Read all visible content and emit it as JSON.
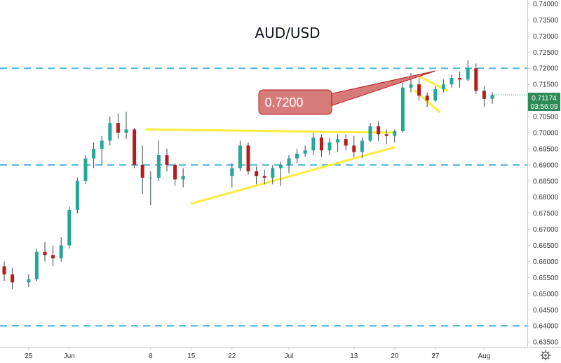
{
  "chart_data": {
    "type": "candlestick",
    "title": "AUD/USD",
    "y_axis": {
      "ticks": [
        "0.74000",
        "0.73500",
        "0.73000",
        "0.72500",
        "0.72000",
        "0.71500",
        "0.71000",
        "0.70500",
        "0.70000",
        "0.69500",
        "0.69000",
        "0.68500",
        "0.68000",
        "0.67500",
        "0.67000",
        "0.66500",
        "0.66000",
        "0.65500",
        "0.65000",
        "0.64500",
        "0.64000",
        "0.63500"
      ],
      "range": [
        0.6335,
        0.7412
      ],
      "position": "right"
    },
    "x_axis": {
      "ticks": [
        {
          "label": "25",
          "index": 3
        },
        {
          "label": "Jun",
          "index": 8
        },
        {
          "label": "8",
          "index": 18
        },
        {
          "label": "15",
          "index": 23
        },
        {
          "label": "22",
          "index": 28
        },
        {
          "label": "Jul",
          "index": 35
        },
        {
          "label": "13",
          "index": 43
        },
        {
          "label": "20",
          "index": 48
        },
        {
          "label": "27",
          "index": 53
        },
        {
          "label": "Aug",
          "index": 59
        }
      ]
    },
    "grid": false,
    "colors": {
      "up": "#26a69a",
      "down": "#b71c1c",
      "wick": "#37474f",
      "level": "#4fb8e0",
      "trend": "#ffeb3b",
      "callout_fill": "#d77a7a",
      "callout_border": "#b71c1c",
      "price_tag": "#2e8b57"
    },
    "candles": [
      {
        "d": "May 21",
        "o": 0.6585,
        "h": 0.66,
        "l": 0.654,
        "c": 0.656
      },
      {
        "d": "May 22",
        "o": 0.656,
        "h": 0.658,
        "l": 0.6515,
        "c": 0.6535
      },
      {
        "d": "May 25",
        "o": 0.6535,
        "h": 0.656,
        "l": 0.652,
        "c": 0.6545
      },
      {
        "d": "May 26",
        "o": 0.6545,
        "h": 0.664,
        "l": 0.654,
        "c": 0.663
      },
      {
        "d": "May 27",
        "o": 0.663,
        "h": 0.666,
        "l": 0.66,
        "c": 0.662
      },
      {
        "d": "May 28",
        "o": 0.662,
        "h": 0.665,
        "l": 0.6585,
        "c": 0.661
      },
      {
        "d": "May 29",
        "o": 0.661,
        "h": 0.6675,
        "l": 0.66,
        "c": 0.665
      },
      {
        "d": "Jun 1",
        "o": 0.665,
        "h": 0.677,
        "l": 0.664,
        "c": 0.676
      },
      {
        "d": "Jun 2",
        "o": 0.676,
        "h": 0.686,
        "l": 0.675,
        "c": 0.685
      },
      {
        "d": "Jun 3",
        "o": 0.685,
        "h": 0.693,
        "l": 0.684,
        "c": 0.692
      },
      {
        "d": "Jun 4",
        "o": 0.692,
        "h": 0.697,
        "l": 0.689,
        "c": 0.695
      },
      {
        "d": "Jun 5",
        "o": 0.695,
        "h": 0.699,
        "l": 0.69,
        "c": 0.6975
      },
      {
        "d": "Jun 8",
        "o": 0.6975,
        "h": 0.705,
        "l": 0.696,
        "c": 0.703
      },
      {
        "d": "Jun 9",
        "o": 0.703,
        "h": 0.706,
        "l": 0.698,
        "c": 0.7
      },
      {
        "d": "Jun 10",
        "o": 0.7,
        "h": 0.7065,
        "l": 0.698,
        "c": 0.701
      },
      {
        "d": "Jun 11",
        "o": 0.701,
        "h": 0.7015,
        "l": 0.689,
        "c": 0.69
      },
      {
        "d": "Jun 12",
        "o": 0.69,
        "h": 0.696,
        "l": 0.681,
        "c": 0.686
      },
      {
        "d": "Jun 15",
        "o": 0.686,
        "h": 0.688,
        "l": 0.6775,
        "c": 0.686
      },
      {
        "d": "Jun 16",
        "o": 0.686,
        "h": 0.6975,
        "l": 0.685,
        "c": 0.693
      },
      {
        "d": "Jun 17",
        "o": 0.693,
        "h": 0.695,
        "l": 0.688,
        "c": 0.69
      },
      {
        "d": "Jun 18",
        "o": 0.69,
        "h": 0.6905,
        "l": 0.6835,
        "c": 0.6855
      },
      {
        "d": "Jun 19",
        "o": 0.6855,
        "h": 0.689,
        "l": 0.683,
        "c": 0.6865
      },
      {
        "d": "Jun 22",
        "o": 0.6865,
        "h": 0.6905,
        "l": 0.683,
        "c": 0.689
      },
      {
        "d": "Jun 23",
        "o": 0.689,
        "h": 0.6975,
        "l": 0.688,
        "c": 0.696
      },
      {
        "d": "Jun 24",
        "o": 0.696,
        "h": 0.697,
        "l": 0.687,
        "c": 0.688
      },
      {
        "d": "Jun 25",
        "o": 0.688,
        "h": 0.6895,
        "l": 0.684,
        "c": 0.6865
      },
      {
        "d": "Jun 26",
        "o": 0.6865,
        "h": 0.6885,
        "l": 0.684,
        "c": 0.686
      },
      {
        "d": "Jun 29",
        "o": 0.686,
        "h": 0.69,
        "l": 0.684,
        "c": 0.689
      },
      {
        "d": "Jun 30",
        "o": 0.689,
        "h": 0.691,
        "l": 0.6835,
        "c": 0.69
      },
      {
        "d": "Jul 1",
        "o": 0.69,
        "h": 0.693,
        "l": 0.6875,
        "c": 0.692
      },
      {
        "d": "Jul 2",
        "o": 0.692,
        "h": 0.695,
        "l": 0.6905,
        "c": 0.6935
      },
      {
        "d": "Jul 3",
        "o": 0.6935,
        "h": 0.696,
        "l": 0.6925,
        "c": 0.6945
      },
      {
        "d": "Jul 6",
        "o": 0.6945,
        "h": 0.7,
        "l": 0.693,
        "c": 0.6985
      },
      {
        "d": "Jul 7",
        "o": 0.6985,
        "h": 0.6995,
        "l": 0.6925,
        "c": 0.6945
      },
      {
        "d": "Jul 8",
        "o": 0.6945,
        "h": 0.6985,
        "l": 0.693,
        "c": 0.697
      },
      {
        "d": "Jul 9",
        "o": 0.697,
        "h": 0.6995,
        "l": 0.694,
        "c": 0.698
      },
      {
        "d": "Jul 10",
        "o": 0.698,
        "h": 0.6995,
        "l": 0.6945,
        "c": 0.696
      },
      {
        "d": "Jul 13",
        "o": 0.696,
        "h": 0.699,
        "l": 0.6925,
        "c": 0.694
      },
      {
        "d": "Jul 14",
        "o": 0.694,
        "h": 0.6985,
        "l": 0.692,
        "c": 0.6975
      },
      {
        "d": "Jul 15",
        "o": 0.6975,
        "h": 0.703,
        "l": 0.697,
        "c": 0.702
      },
      {
        "d": "Jul 16",
        "o": 0.702,
        "h": 0.7035,
        "l": 0.6975,
        "c": 0.6995
      },
      {
        "d": "Jul 17",
        "o": 0.6995,
        "h": 0.701,
        "l": 0.6965,
        "c": 0.699
      },
      {
        "d": "Jul 20",
        "o": 0.699,
        "h": 0.701,
        "l": 0.697,
        "c": 0.7005
      },
      {
        "d": "Jul 21",
        "o": 0.7005,
        "h": 0.7155,
        "l": 0.7,
        "c": 0.714
      },
      {
        "d": "Jul 22",
        "o": 0.714,
        "h": 0.7185,
        "l": 0.7125,
        "c": 0.715
      },
      {
        "d": "Jul 23",
        "o": 0.715,
        "h": 0.717,
        "l": 0.71,
        "c": 0.7115
      },
      {
        "d": "Jul 24",
        "o": 0.7115,
        "h": 0.7125,
        "l": 0.708,
        "c": 0.71
      },
      {
        "d": "Jul 27",
        "o": 0.71,
        "h": 0.7145,
        "l": 0.7095,
        "c": 0.7135
      },
      {
        "d": "Jul 28",
        "o": 0.7135,
        "h": 0.7165,
        "l": 0.7125,
        "c": 0.715
      },
      {
        "d": "Jul 29",
        "o": 0.715,
        "h": 0.718,
        "l": 0.714,
        "c": 0.717
      },
      {
        "d": "Jul 30",
        "o": 0.717,
        "h": 0.719,
        "l": 0.714,
        "c": 0.7165
      },
      {
        "d": "Jul 31",
        "o": 0.7165,
        "h": 0.7225,
        "l": 0.716,
        "c": 0.72
      },
      {
        "d": "Aug 3",
        "o": 0.72,
        "h": 0.7215,
        "l": 0.712,
        "c": 0.713
      },
      {
        "d": "Aug 4",
        "o": 0.713,
        "h": 0.7145,
        "l": 0.708,
        "c": 0.7105
      },
      {
        "d": "Aug 5",
        "o": 0.7105,
        "h": 0.7125,
        "l": 0.709,
        "c": 0.7117
      }
    ],
    "candle_x_index": [
      0,
      1,
      3,
      4,
      5,
      6,
      7,
      8,
      9,
      10,
      11,
      12,
      13,
      14,
      15,
      16,
      17,
      18,
      19,
      20,
      21,
      22,
      28,
      29,
      30,
      31,
      32,
      33,
      34,
      35,
      36,
      37,
      38,
      39,
      40,
      41,
      42,
      43,
      44,
      45,
      46,
      47,
      48,
      49,
      50,
      51,
      52,
      53,
      54,
      55,
      56,
      57,
      58,
      59,
      60
    ],
    "horizontal_levels": [
      0.72,
      0.69,
      0.64
    ],
    "trend_lines": [
      {
        "from": [
          17.5,
          0.701
        ],
        "to": [
          48.0,
          0.7
        ]
      },
      {
        "from": [
          23.0,
          0.678
        ],
        "to": [
          48.0,
          0.6955
        ]
      },
      {
        "from": [
          51.0,
          0.7175
        ],
        "to": [
          54.5,
          0.713
        ]
      },
      {
        "from": [
          50.5,
          0.713
        ],
        "to": [
          53.5,
          0.7065
        ]
      },
      {
        "from": [
          42.0,
          0.712
        ],
        "to": [
          52.0,
          0.72
        ]
      }
    ],
    "annotations": [
      {
        "text": "0.7200"
      }
    ],
    "last_price": {
      "price": "0.71174",
      "countdown": "03:56:09",
      "value": 0.71174
    }
  }
}
